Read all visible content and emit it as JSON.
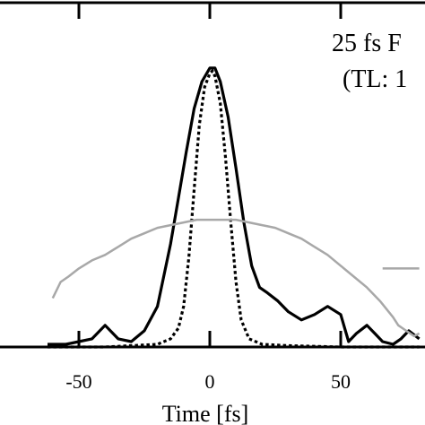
{
  "chart_data": {
    "type": "line",
    "xlabel": "Time [fs]",
    "ylabel": "",
    "xlim": [
      -62,
      80
    ],
    "ylim": [
      0,
      1.1
    ],
    "xticks": [
      -50,
      0,
      50
    ],
    "xtick_labels": [
      "-50",
      "0",
      "50"
    ],
    "annotations": [
      "25 fs F",
      "(TL: 1"
    ],
    "grid": false,
    "series": [
      {
        "style": "solid",
        "color": "#000000",
        "x": [
          -62,
          -55,
          -50,
          -45,
          -40,
          -35,
          -30,
          -25,
          -20,
          -15,
          -12,
          -9,
          -6,
          -3,
          0,
          2,
          4,
          7,
          10,
          13,
          16,
          19,
          22,
          26,
          30,
          35,
          40,
          45,
          50,
          53,
          56,
          60,
          63,
          66,
          70,
          73,
          76,
          80
        ],
        "y": [
          0.01,
          0.01,
          0.02,
          0.03,
          0.08,
          0.03,
          0.02,
          0.06,
          0.15,
          0.38,
          0.55,
          0.72,
          0.88,
          0.98,
          1.03,
          1.03,
          0.98,
          0.85,
          0.66,
          0.46,
          0.3,
          0.22,
          0.2,
          0.17,
          0.13,
          0.1,
          0.12,
          0.15,
          0.12,
          0.02,
          0.05,
          0.08,
          0.05,
          0.02,
          0.01,
          0.03,
          0.06,
          0.03
        ]
      },
      {
        "style": "dotted",
        "color": "#000000",
        "x": [
          -62,
          -40,
          -30,
          -20,
          -15,
          -12,
          -10,
          -8,
          -6,
          -4,
          -2,
          0,
          1,
          2,
          4,
          6,
          8,
          10,
          12,
          15,
          20,
          30,
          50,
          80
        ],
        "y": [
          0,
          0,
          0.005,
          0.01,
          0.03,
          0.07,
          0.15,
          0.33,
          0.58,
          0.82,
          0.96,
          1.01,
          1.02,
          1.0,
          0.9,
          0.7,
          0.46,
          0.24,
          0.1,
          0.03,
          0.01,
          0.005,
          0,
          0
        ]
      },
      {
        "style": "solid",
        "color": "#a8a8a8",
        "x": [
          -60,
          -57,
          -54,
          -50,
          -45,
          -40,
          -35,
          -30,
          -25,
          -20,
          -15,
          -10,
          -5,
          0,
          5,
          10,
          15,
          20,
          25,
          30,
          35,
          40,
          45,
          50,
          55,
          60,
          65,
          70,
          72,
          75,
          78,
          80
        ],
        "y": [
          0.18,
          0.24,
          0.26,
          0.29,
          0.32,
          0.34,
          0.37,
          0.4,
          0.42,
          0.44,
          0.45,
          0.46,
          0.47,
          0.47,
          0.47,
          0.47,
          0.46,
          0.45,
          0.44,
          0.42,
          0.4,
          0.37,
          0.34,
          0.3,
          0.26,
          0.22,
          0.17,
          0.11,
          0.08,
          0.06,
          0.04,
          0.05
        ]
      }
    ],
    "extra_segment": {
      "color": "#a8a8a8",
      "x": [
        66,
        80
      ],
      "y": [
        0.29,
        0.29
      ]
    }
  }
}
